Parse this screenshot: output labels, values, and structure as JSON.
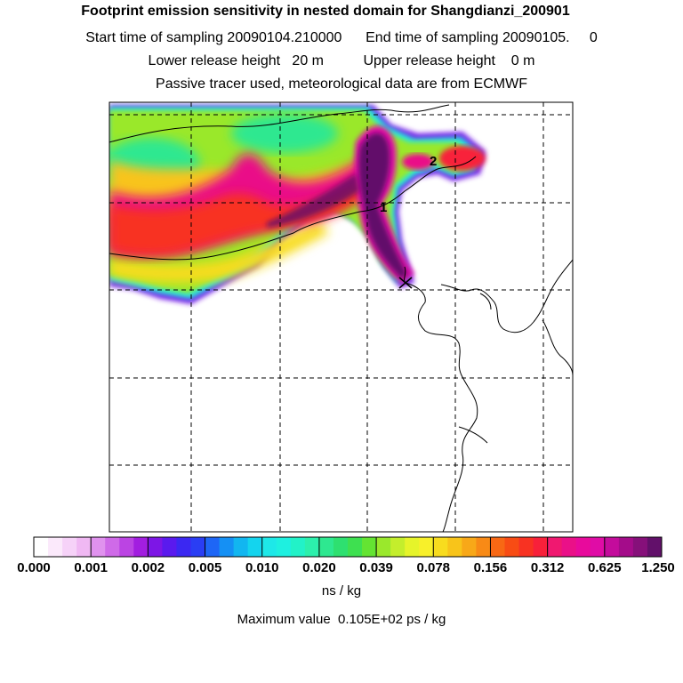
{
  "header": {
    "title": "Footprint emission sensitivity in nested domain for Shangdianzi_200901",
    "sampling_line": "Start time of sampling 20090104.210000      End time of sampling 20090105.     0",
    "release_line": "Lower release height   20 m          Upper release height    0 m",
    "tracer_line": "Passive tracer used, meteorological data are from ECMWF"
  },
  "map": {
    "markers": [
      "1",
      "2"
    ]
  },
  "colorbar": {
    "tick_labels": [
      "0.000",
      "0.001",
      "0.002",
      "0.005",
      "0.010",
      "0.020",
      "0.039",
      "0.078",
      "0.156",
      "0.312",
      "0.625",
      "1.250"
    ],
    "colors": [
      [
        "#ffffff",
        "#fbe9fb",
        "#f6d2f8",
        "#f0b8f3"
      ],
      [
        "#e092ee",
        "#cf6ae8",
        "#bb44e3",
        "#a21ee0"
      ],
      [
        "#7d16e6",
        "#5a1aee",
        "#3b28f2",
        "#2a3ef4"
      ],
      [
        "#1e66f6",
        "#1590f4",
        "#12b6f0",
        "#14d4ee"
      ],
      [
        "#1ee8e8",
        "#1ef0e0",
        "#22f2c8",
        "#2cf0ac"
      ],
      [
        "#2ee890",
        "#2ee070",
        "#3ee050",
        "#64e432"
      ],
      [
        "#9ae82c",
        "#c4ee2c",
        "#e6f42a",
        "#f8f02a"
      ],
      [
        "#f8dc1e",
        "#f8c41a",
        "#f8a818",
        "#f88a16"
      ],
      [
        "#f86814",
        "#f84c14",
        "#f83222",
        "#f8203a"
      ],
      [
        "#f01870",
        "#ea1088",
        "#e80a9c",
        "#e00ca6"
      ],
      [
        "#c40c9c",
        "#a40c8a",
        "#86107a",
        "#62106a"
      ]
    ],
    "units": "ns / kg",
    "max_value": "Maximum value  0.105E+02 ps / kg"
  }
}
